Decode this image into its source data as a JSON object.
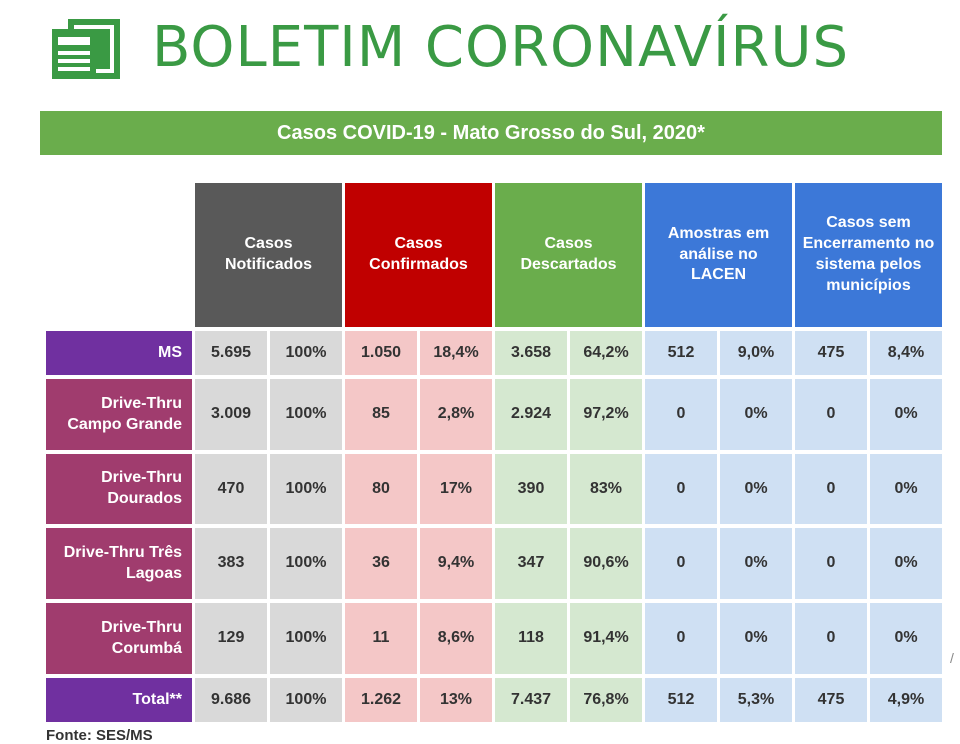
{
  "header": {
    "title": "BOLETIM CORONAVÍRUS",
    "logo_icon": "newspaper-icon",
    "brand_color": "#3a9a44"
  },
  "banner": {
    "text": "Casos COVID-19 - Mato Grosso do Sul, 2020*"
  },
  "table": {
    "column_groups": [
      "Casos Notificados",
      "Casos Confirmados",
      "Casos Descartados",
      "Amostras em análise no LACEN",
      "Casos sem Encerramento no sistema pelos municípios"
    ],
    "rows": [
      {
        "label": "MS",
        "values": [
          "5.695",
          "100%",
          "1.050",
          "18,4%",
          "3.658",
          "64,2%",
          "512",
          "9,0%",
          "475",
          "8,4%"
        ]
      },
      {
        "label": "Drive-Thru Campo Grande",
        "values": [
          "3.009",
          "100%",
          "85",
          "2,8%",
          "2.924",
          "97,2%",
          "0",
          "0%",
          "0",
          "0%"
        ]
      },
      {
        "label": "Drive-Thru Dourados",
        "values": [
          "470",
          "100%",
          "80",
          "17%",
          "390",
          "83%",
          "0",
          "0%",
          "0",
          "0%"
        ]
      },
      {
        "label": "Drive-Thru Três Lagoas",
        "values": [
          "383",
          "100%",
          "36",
          "9,4%",
          "347",
          "90,6%",
          "0",
          "0%",
          "0",
          "0%"
        ]
      },
      {
        "label": "Drive-Thru Corumbá",
        "values": [
          "129",
          "100%",
          "11",
          "8,6%",
          "118",
          "91,4%",
          "0",
          "0%",
          "0",
          "0%"
        ]
      },
      {
        "label": "Total**",
        "values": [
          "9.686",
          "100%",
          "1.262",
          "13%",
          "7.437",
          "76,8%",
          "512",
          "5,3%",
          "475",
          "4,9%"
        ]
      }
    ]
  },
  "footer": {
    "text": "Fonte: SES/MS"
  }
}
